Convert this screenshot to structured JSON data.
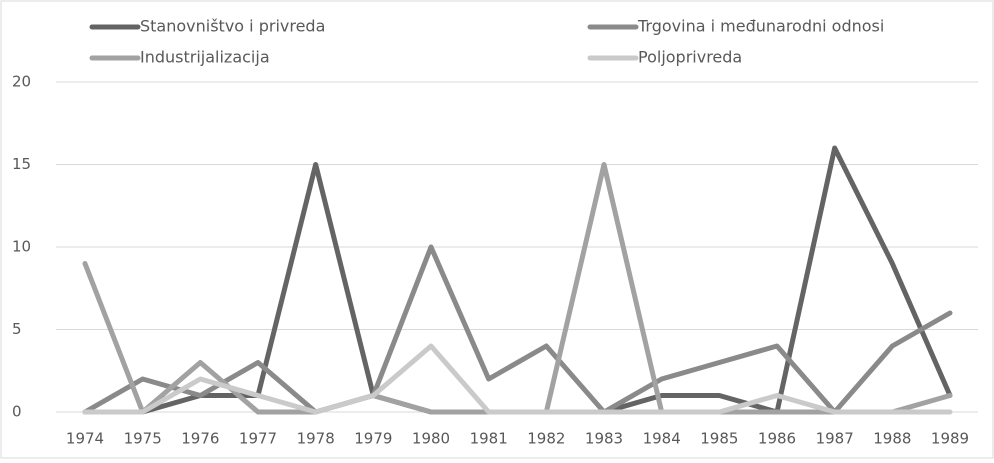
{
  "chart_data": {
    "type": "line",
    "x": [
      "1974",
      "1975",
      "1976",
      "1977",
      "1978",
      "1979",
      "1980",
      "1981",
      "1982",
      "1983",
      "1984",
      "1985",
      "1986",
      "1987",
      "1988",
      "1989"
    ],
    "series": [
      {
        "name": "Stanovništvo i privreda",
        "color": "#646464",
        "values": [
          0,
          0,
          1,
          1,
          15,
          1,
          0,
          0,
          0,
          0,
          1,
          1,
          0,
          16,
          9,
          1
        ]
      },
      {
        "name": "Trgovina i međunarodni odnosi",
        "color": "#8a8a8a",
        "values": [
          0,
          2,
          1,
          3,
          0,
          1,
          10,
          2,
          4,
          0,
          2,
          3,
          4,
          0,
          4,
          6
        ]
      },
      {
        "name": "Industrijalizacija",
        "color": "#a2a2a2",
        "values": [
          9,
          0,
          3,
          0,
          0,
          1,
          0,
          0,
          0,
          15,
          0,
          0,
          0,
          0,
          0,
          1
        ]
      },
      {
        "name": "Poljoprivreda",
        "color": "#cacaca",
        "values": [
          0,
          0,
          2,
          1,
          0,
          1,
          4,
          0,
          0,
          0,
          0,
          0,
          1,
          0,
          0,
          0
        ]
      }
    ],
    "ylim": [
      0,
      20
    ],
    "yticks": [
      0,
      5,
      10,
      15,
      20
    ],
    "grid": true,
    "legend": "top"
  }
}
